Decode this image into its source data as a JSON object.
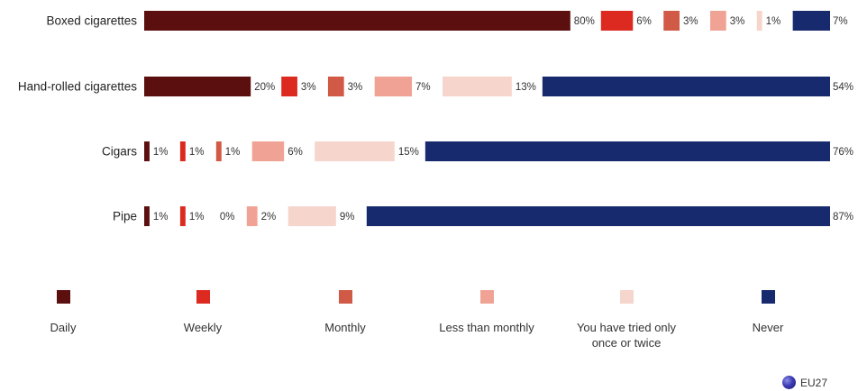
{
  "chart_data": {
    "type": "bar",
    "orientation": "horizontal",
    "stacked": true,
    "segments_separated_with_labels": true,
    "categories": [
      "Boxed cigarettes",
      "Hand-rolled cigarettes",
      "Cigars",
      "Pipe"
    ],
    "series": [
      {
        "name": "Daily",
        "color": "#5c0f0f",
        "values": [
          80,
          20,
          1,
          1
        ]
      },
      {
        "name": "Weekly",
        "color": "#dc2a20",
        "values": [
          6,
          3,
          1,
          1
        ]
      },
      {
        "name": "Monthly",
        "color": "#d05a45",
        "values": [
          3,
          3,
          1,
          0
        ]
      },
      {
        "name": "Less than monthly",
        "color": "#f0a394",
        "values": [
          3,
          7,
          6,
          2
        ]
      },
      {
        "name": "You have tried only once or twice",
        "color": "#f6d6cc",
        "values": [
          1,
          13,
          15,
          9
        ]
      },
      {
        "name": "Never",
        "color": "#182a6e",
        "values": [
          7,
          54,
          76,
          87
        ]
      }
    ],
    "value_suffix": "%",
    "legend_position": "bottom",
    "grid": false
  },
  "legend_lines": [
    [
      "Daily"
    ],
    [
      "Weekly"
    ],
    [
      "Monthly"
    ],
    [
      "Less than monthly"
    ],
    [
      "You have tried only",
      "once or twice"
    ],
    [
      "Never"
    ]
  ],
  "footer": {
    "label": "EU27",
    "icon": "globe-icon"
  }
}
